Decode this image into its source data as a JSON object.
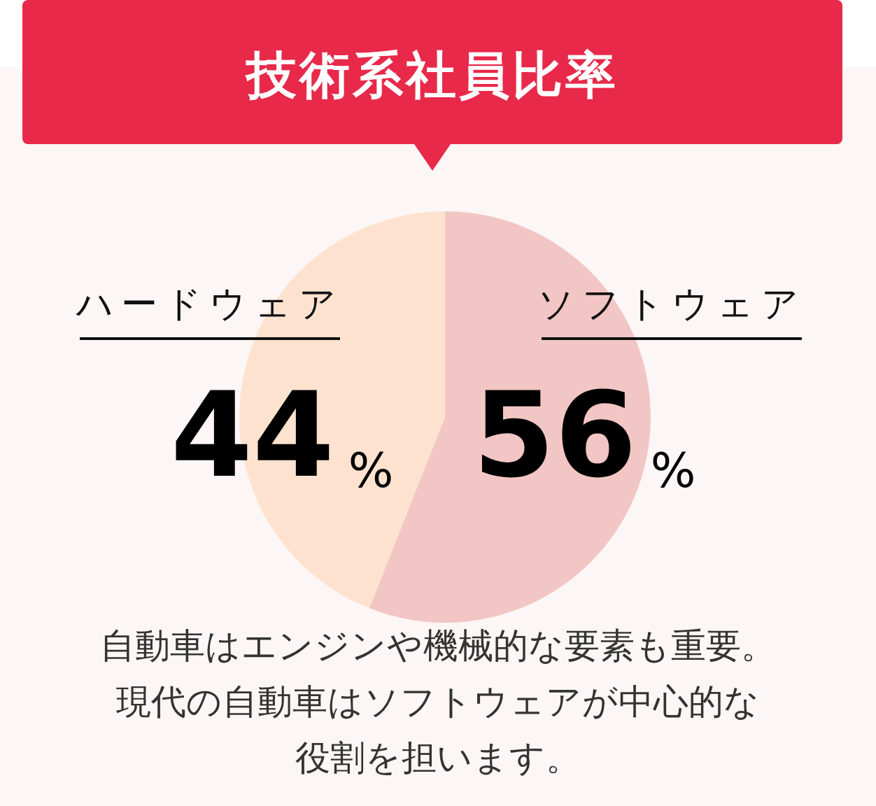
{
  "chart_data": {
    "type": "pie",
    "title": "技術系社員比率",
    "categories": [
      "ソフトウェア",
      "ハードウェア"
    ],
    "values": [
      56,
      44
    ],
    "colors": [
      "#f2c6c4",
      "#fde3cf"
    ],
    "value_labels": [
      "56%",
      "44%"
    ],
    "annotations": [
      "自動車はエンジンや機械的な要素も重要。",
      "現代の自動車はソフトウェアが中心的な",
      "役割を担います。"
    ]
  }
}
